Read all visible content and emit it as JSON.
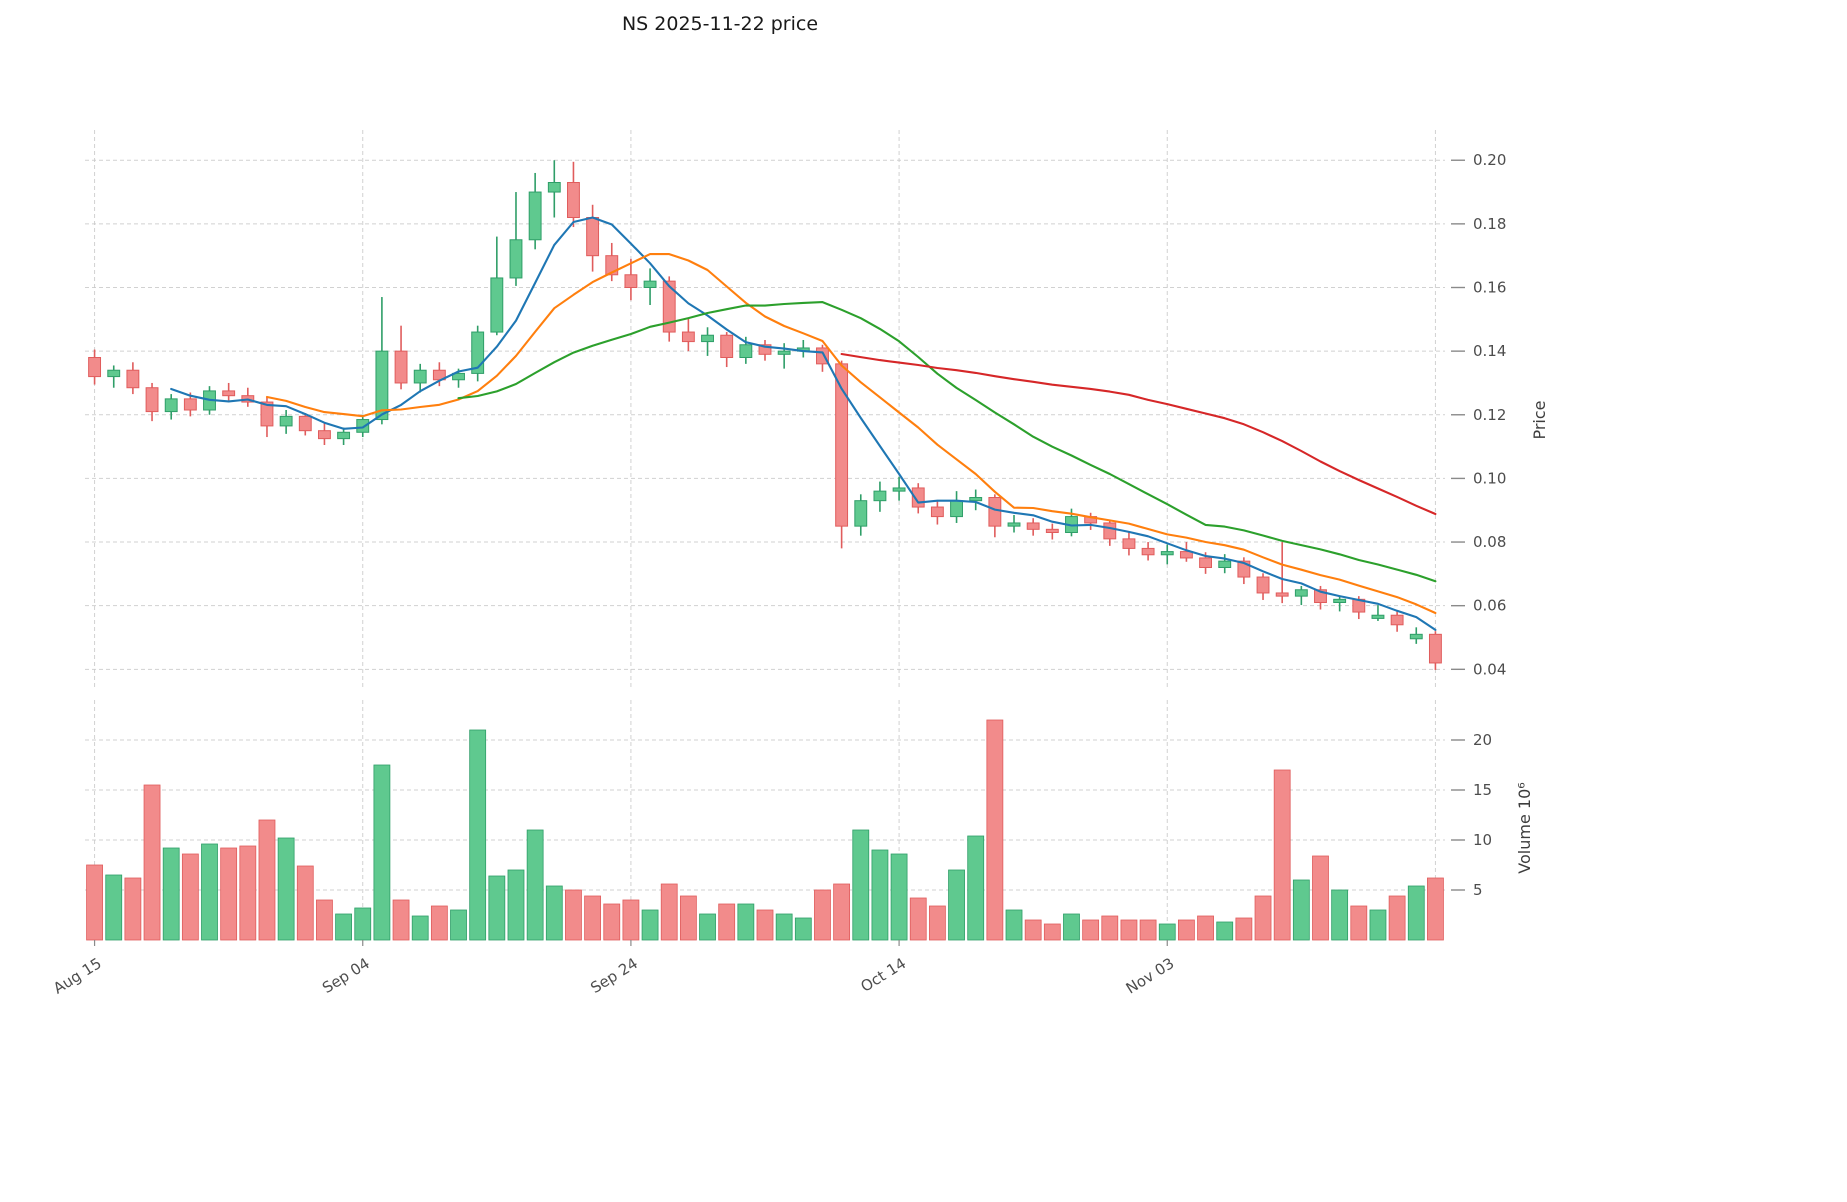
{
  "chart_data": {
    "type": "candlestick",
    "title": "NS  2025-11-22  price",
    "xlabel": "",
    "grid": "dashed",
    "legend": "none",
    "price_axis": {
      "label": "Price",
      "side": "right",
      "ticks": [
        0.04,
        0.06,
        0.08,
        0.1,
        0.12,
        0.14,
        0.16,
        0.18,
        0.2
      ],
      "min": 0.0335,
      "max": 0.2095
    },
    "volume_axis": {
      "label": "Volume  10⁶",
      "side": "right",
      "ticks": [
        5,
        10,
        15,
        20
      ],
      "max": 22.5,
      "unit": "millions of shares"
    },
    "x_ticks": [
      {
        "index": 0,
        "label": "Aug 15"
      },
      {
        "index": 14,
        "label": "Sep 04"
      },
      {
        "index": 28,
        "label": "Sep 24"
      },
      {
        "index": 42,
        "label": "Oct 14"
      },
      {
        "index": 56,
        "label": "Nov 03"
      }
    ],
    "x_grid_extra_indices": [
      70
    ],
    "moving_averages": [
      {
        "name": "MA5",
        "period": 5,
        "color": "#1f77b4"
      },
      {
        "name": "MA10",
        "period": 10,
        "color": "#ff7f0e"
      },
      {
        "name": "MA20",
        "period": 20,
        "color": "#2ca02c"
      },
      {
        "name": "MA40",
        "period": 40,
        "color": "#d62728"
      }
    ],
    "colors": {
      "up_fill": "#5fc98f",
      "up_edge": "#2f9e68",
      "down_fill": "#f28b8b",
      "down_edge": "#e05c5c",
      "grid": "#c9c9c9",
      "tick_text": "#4d4d4d",
      "title_text": "#1a1a1a"
    },
    "series": {
      "dates": [
        "2025-08-15",
        "2025-08-18",
        "2025-08-19",
        "2025-08-20",
        "2025-08-21",
        "2025-08-22",
        "2025-08-25",
        "2025-08-26",
        "2025-08-27",
        "2025-08-28",
        "2025-08-29",
        "2025-09-01",
        "2025-09-02",
        "2025-09-03",
        "2025-09-04",
        "2025-09-05",
        "2025-09-08",
        "2025-09-09",
        "2025-09-10",
        "2025-09-11",
        "2025-09-12",
        "2025-09-15",
        "2025-09-16",
        "2025-09-17",
        "2025-09-18",
        "2025-09-19",
        "2025-09-22",
        "2025-09-23",
        "2025-09-24",
        "2025-09-25",
        "2025-09-26",
        "2025-09-29",
        "2025-09-30",
        "2025-10-01",
        "2025-10-02",
        "2025-10-03",
        "2025-10-06",
        "2025-10-07",
        "2025-10-08",
        "2025-10-09",
        "2025-10-10",
        "2025-10-13",
        "2025-10-14",
        "2025-10-15",
        "2025-10-16",
        "2025-10-17",
        "2025-10-20",
        "2025-10-21",
        "2025-10-22",
        "2025-10-23",
        "2025-10-24",
        "2025-10-27",
        "2025-10-28",
        "2025-10-29",
        "2025-10-30",
        "2025-10-31",
        "2025-11-03",
        "2025-11-04",
        "2025-11-05",
        "2025-11-06",
        "2025-11-07",
        "2025-11-10",
        "2025-11-11",
        "2025-11-12",
        "2025-11-13",
        "2025-11-14",
        "2025-11-17",
        "2025-11-18",
        "2025-11-19",
        "2025-11-20",
        "2025-11-21"
      ],
      "open": [
        0.138,
        0.132,
        0.134,
        0.1285,
        0.121,
        0.125,
        0.1215,
        0.1275,
        0.126,
        0.124,
        0.1165,
        0.1195,
        0.115,
        0.1125,
        0.1145,
        0.1185,
        0.14,
        0.13,
        0.134,
        0.131,
        0.133,
        0.146,
        0.163,
        0.175,
        0.19,
        0.193,
        0.182,
        0.17,
        0.164,
        0.16,
        0.162,
        0.146,
        0.143,
        0.145,
        0.138,
        0.142,
        0.139,
        0.14,
        0.141,
        0.136,
        0.085,
        0.093,
        0.096,
        0.097,
        0.091,
        0.088,
        0.093,
        0.094,
        0.085,
        0.086,
        0.084,
        0.083,
        0.088,
        0.086,
        0.081,
        0.078,
        0.076,
        0.077,
        0.075,
        0.072,
        0.074,
        0.069,
        0.064,
        0.063,
        0.065,
        0.061,
        0.062,
        0.056,
        0.057,
        0.0496,
        0.051
      ],
      "high": [
        0.1405,
        0.1355,
        0.1365,
        0.13,
        0.1265,
        0.127,
        0.129,
        0.13,
        0.1285,
        0.1255,
        0.1215,
        0.1205,
        0.1175,
        0.116,
        0.12,
        0.157,
        0.148,
        0.136,
        0.1365,
        0.1345,
        0.148,
        0.176,
        0.19,
        0.196,
        0.2,
        0.1995,
        0.186,
        0.174,
        0.169,
        0.166,
        0.1635,
        0.1505,
        0.1475,
        0.146,
        0.1445,
        0.1435,
        0.1425,
        0.1435,
        0.142,
        0.137,
        0.095,
        0.099,
        0.1005,
        0.0985,
        0.093,
        0.096,
        0.0965,
        0.095,
        0.0885,
        0.0875,
        0.0858,
        0.0905,
        0.0892,
        0.087,
        0.0832,
        0.08,
        0.0792,
        0.08,
        0.0768,
        0.0762,
        0.0752,
        0.0702,
        0.08,
        0.0662,
        0.0662,
        0.0632,
        0.063,
        0.0602,
        0.0582,
        0.0532,
        0.052
      ],
      "low": [
        0.1295,
        0.1285,
        0.1265,
        0.118,
        0.1185,
        0.1195,
        0.12,
        0.1245,
        0.1225,
        0.113,
        0.114,
        0.1135,
        0.1105,
        0.1105,
        0.113,
        0.117,
        0.128,
        0.127,
        0.129,
        0.1285,
        0.1305,
        0.145,
        0.1605,
        0.172,
        0.182,
        0.179,
        0.165,
        0.162,
        0.156,
        0.1545,
        0.143,
        0.14,
        0.1385,
        0.135,
        0.136,
        0.137,
        0.1345,
        0.138,
        0.1335,
        0.078,
        0.082,
        0.0895,
        0.093,
        0.089,
        0.0855,
        0.086,
        0.09,
        0.0815,
        0.083,
        0.082,
        0.0808,
        0.0818,
        0.0838,
        0.0788,
        0.0758,
        0.0742,
        0.073,
        0.0738,
        0.07,
        0.0702,
        0.0668,
        0.0618,
        0.0608,
        0.0602,
        0.0588,
        0.0582,
        0.0558,
        0.0552,
        0.0518,
        0.048,
        0.0398
      ],
      "close": [
        0.132,
        0.134,
        0.1285,
        0.121,
        0.125,
        0.1215,
        0.1275,
        0.126,
        0.124,
        0.1165,
        0.1195,
        0.115,
        0.1125,
        0.1145,
        0.1185,
        0.14,
        0.13,
        0.134,
        0.131,
        0.133,
        0.146,
        0.163,
        0.175,
        0.19,
        0.193,
        0.182,
        0.17,
        0.164,
        0.16,
        0.162,
        0.146,
        0.143,
        0.145,
        0.138,
        0.142,
        0.139,
        0.14,
        0.141,
        0.136,
        0.085,
        0.093,
        0.096,
        0.097,
        0.091,
        0.088,
        0.093,
        0.094,
        0.085,
        0.086,
        0.084,
        0.083,
        0.088,
        0.086,
        0.081,
        0.078,
        0.076,
        0.077,
        0.075,
        0.072,
        0.074,
        0.069,
        0.064,
        0.063,
        0.065,
        0.061,
        0.062,
        0.058,
        0.057,
        0.054,
        0.051,
        0.042
      ],
      "volume_millions": [
        7.5,
        6.5,
        6.2,
        15.5,
        9.2,
        8.6,
        9.6,
        9.2,
        9.4,
        12.0,
        10.2,
        7.4,
        4.0,
        2.6,
        3.2,
        17.5,
        4.0,
        2.4,
        3.4,
        3.0,
        21.0,
        6.4,
        7.0,
        11.0,
        5.4,
        5.0,
        4.4,
        3.6,
        4.0,
        3.0,
        5.6,
        4.4,
        2.6,
        3.6,
        3.6,
        3.0,
        2.6,
        2.2,
        5.0,
        5.6,
        11.0,
        9.0,
        8.6,
        4.2,
        3.4,
        7.0,
        10.4,
        22.0,
        3.0,
        2.0,
        1.6,
        2.6,
        2.0,
        2.4,
        2.0,
        2.0,
        1.6,
        2.0,
        2.4,
        1.8,
        2.2,
        4.4,
        17.0,
        6.0,
        8.4,
        5.0,
        3.4,
        3.0,
        4.4,
        5.4,
        6.2
      ]
    }
  }
}
